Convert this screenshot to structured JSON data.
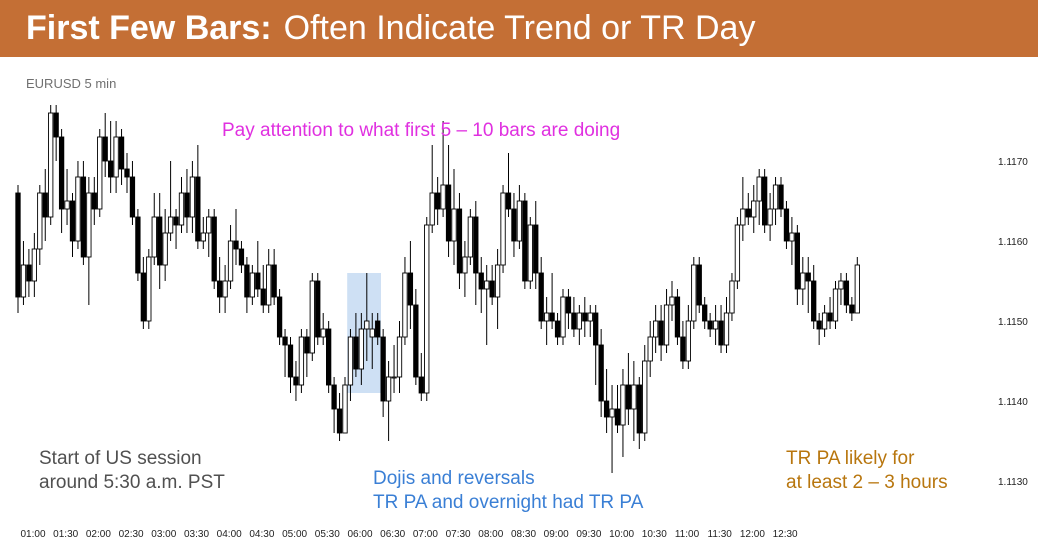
{
  "header": {
    "title_bold": "First Few Bars:",
    "title_rest": "Often Indicate Trend or TR Day",
    "background": "#c46f35"
  },
  "chart_label": "EURUSD 5 min",
  "annotations": {
    "top": "Pay attention to what first 5 – 10 bars are doing",
    "left_line1": "Start of US session",
    "left_line2": "around 5:30 a.m. PST",
    "middle_line1": "Dojis and reversals",
    "middle_line2": "TR PA and overnight had TR PA",
    "right_line1": "TR PA likely for",
    "right_line2": "at least 2 – 3 hours"
  },
  "chart_data": {
    "type": "candlestick",
    "title": "EURUSD 5 min",
    "x_start": "01:00",
    "x_interval_minutes": 5,
    "x_tick_labels": [
      "01:00",
      "01:30",
      "02:00",
      "02:30",
      "03:00",
      "03:30",
      "04:00",
      "04:30",
      "05:00",
      "05:30",
      "06:00",
      "06:30",
      "07:00",
      "07:30",
      "08:00",
      "08:30",
      "09:00",
      "09:30",
      "10:00",
      "10:30",
      "11:00",
      "11:30",
      "12:00",
      "12:30"
    ],
    "y_tick_labels": [
      "1.1130",
      "1.1140",
      "1.1150",
      "1.1160",
      "1.1170"
    ],
    "y_ticks": [
      1.113,
      1.114,
      1.115,
      1.116,
      1.117
    ],
    "ylim": [
      1.1125,
      1.1178
    ],
    "bar_up_color": "#ffffff",
    "bar_down_color": "#000000",
    "highlight": {
      "from_bar": 61,
      "to_bar": 66,
      "low": 1.1141,
      "high": 1.1156,
      "color": "#c6daf2"
    },
    "bars": [
      {
        "o": 1.1166,
        "h": 1.1167,
        "l": 1.1151,
        "c": 1.1153
      },
      {
        "o": 1.1153,
        "h": 1.116,
        "l": 1.1152,
        "c": 1.1157
      },
      {
        "o": 1.1157,
        "h": 1.1159,
        "l": 1.1153,
        "c": 1.1155
      },
      {
        "o": 1.1155,
        "h": 1.1161,
        "l": 1.1153,
        "c": 1.1159
      },
      {
        "o": 1.1159,
        "h": 1.1167,
        "l": 1.1157,
        "c": 1.1166
      },
      {
        "o": 1.1166,
        "h": 1.1169,
        "l": 1.116,
        "c": 1.1163
      },
      {
        "o": 1.1163,
        "h": 1.1177,
        "l": 1.1162,
        "c": 1.1176
      },
      {
        "o": 1.1176,
        "h": 1.1177,
        "l": 1.117,
        "c": 1.1173
      },
      {
        "o": 1.1173,
        "h": 1.1174,
        "l": 1.1161,
        "c": 1.1164
      },
      {
        "o": 1.1164,
        "h": 1.1169,
        "l": 1.1162,
        "c": 1.1165
      },
      {
        "o": 1.1165,
        "h": 1.1166,
        "l": 1.1158,
        "c": 1.116
      },
      {
        "o": 1.116,
        "h": 1.117,
        "l": 1.1159,
        "c": 1.1168
      },
      {
        "o": 1.1168,
        "h": 1.117,
        "l": 1.1157,
        "c": 1.1158
      },
      {
        "o": 1.1158,
        "h": 1.1168,
        "l": 1.1152,
        "c": 1.1166
      },
      {
        "o": 1.1166,
        "h": 1.1168,
        "l": 1.1162,
        "c": 1.1164
      },
      {
        "o": 1.1164,
        "h": 1.1174,
        "l": 1.1163,
        "c": 1.1173
      },
      {
        "o": 1.1173,
        "h": 1.1176,
        "l": 1.1168,
        "c": 1.117
      },
      {
        "o": 1.117,
        "h": 1.1175,
        "l": 1.1166,
        "c": 1.1168
      },
      {
        "o": 1.1168,
        "h": 1.1175,
        "l": 1.1166,
        "c": 1.1173
      },
      {
        "o": 1.1173,
        "h": 1.1174,
        "l": 1.1167,
        "c": 1.1169
      },
      {
        "o": 1.1169,
        "h": 1.1171,
        "l": 1.1166,
        "c": 1.1168
      },
      {
        "o": 1.1168,
        "h": 1.117,
        "l": 1.1162,
        "c": 1.1163
      },
      {
        "o": 1.1163,
        "h": 1.1164,
        "l": 1.1155,
        "c": 1.1156
      },
      {
        "o": 1.1156,
        "h": 1.1158,
        "l": 1.1149,
        "c": 1.115
      },
      {
        "o": 1.115,
        "h": 1.1159,
        "l": 1.1149,
        "c": 1.1158
      },
      {
        "o": 1.1158,
        "h": 1.1166,
        "l": 1.1157,
        "c": 1.1163
      },
      {
        "o": 1.1163,
        "h": 1.1166,
        "l": 1.1154,
        "c": 1.1157
      },
      {
        "o": 1.1157,
        "h": 1.1164,
        "l": 1.1155,
        "c": 1.1161
      },
      {
        "o": 1.1161,
        "h": 1.117,
        "l": 1.116,
        "c": 1.1163
      },
      {
        "o": 1.1163,
        "h": 1.1164,
        "l": 1.1159,
        "c": 1.1162
      },
      {
        "o": 1.1162,
        "h": 1.1168,
        "l": 1.1161,
        "c": 1.1166
      },
      {
        "o": 1.1166,
        "h": 1.1169,
        "l": 1.1161,
        "c": 1.1163
      },
      {
        "o": 1.1163,
        "h": 1.117,
        "l": 1.1161,
        "c": 1.1168
      },
      {
        "o": 1.1168,
        "h": 1.1172,
        "l": 1.1159,
        "c": 1.116
      },
      {
        "o": 1.116,
        "h": 1.1163,
        "l": 1.1159,
        "c": 1.1161
      },
      {
        "o": 1.1161,
        "h": 1.1164,
        "l": 1.1158,
        "c": 1.1163
      },
      {
        "o": 1.1163,
        "h": 1.1164,
        "l": 1.1154,
        "c": 1.1155
      },
      {
        "o": 1.1155,
        "h": 1.1158,
        "l": 1.1151,
        "c": 1.1153
      },
      {
        "o": 1.1153,
        "h": 1.1157,
        "l": 1.1151,
        "c": 1.1155
      },
      {
        "o": 1.1155,
        "h": 1.1162,
        "l": 1.1154,
        "c": 1.116
      },
      {
        "o": 1.116,
        "h": 1.1164,
        "l": 1.1157,
        "c": 1.1159
      },
      {
        "o": 1.1159,
        "h": 1.116,
        "l": 1.1156,
        "c": 1.1157
      },
      {
        "o": 1.1157,
        "h": 1.1158,
        "l": 1.1151,
        "c": 1.1153
      },
      {
        "o": 1.1153,
        "h": 1.1157,
        "l": 1.1152,
        "c": 1.1156
      },
      {
        "o": 1.1156,
        "h": 1.116,
        "l": 1.1153,
        "c": 1.1154
      },
      {
        "o": 1.1154,
        "h": 1.1157,
        "l": 1.1151,
        "c": 1.1152
      },
      {
        "o": 1.1152,
        "h": 1.1159,
        "l": 1.1151,
        "c": 1.1157
      },
      {
        "o": 1.1157,
        "h": 1.1159,
        "l": 1.1152,
        "c": 1.1153
      },
      {
        "o": 1.1153,
        "h": 1.1154,
        "l": 1.1147,
        "c": 1.1148
      },
      {
        "o": 1.1148,
        "h": 1.1149,
        "l": 1.1143,
        "c": 1.1147
      },
      {
        "o": 1.1147,
        "h": 1.1148,
        "l": 1.1141,
        "c": 1.1143
      },
      {
        "o": 1.1143,
        "h": 1.1145,
        "l": 1.114,
        "c": 1.1142
      },
      {
        "o": 1.1142,
        "h": 1.1149,
        "l": 1.1141,
        "c": 1.1148
      },
      {
        "o": 1.1148,
        "h": 1.1149,
        "l": 1.1143,
        "c": 1.1146
      },
      {
        "o": 1.1146,
        "h": 1.1156,
        "l": 1.1145,
        "c": 1.1155
      },
      {
        "o": 1.1155,
        "h": 1.1156,
        "l": 1.1147,
        "c": 1.1148
      },
      {
        "o": 1.1148,
        "h": 1.1151,
        "l": 1.1147,
        "c": 1.1149
      },
      {
        "o": 1.1149,
        "h": 1.115,
        "l": 1.1141,
        "c": 1.1142
      },
      {
        "o": 1.1142,
        "h": 1.1143,
        "l": 1.1136,
        "c": 1.1139
      },
      {
        "o": 1.1139,
        "h": 1.1141,
        "l": 1.1135,
        "c": 1.1136
      },
      {
        "o": 1.1136,
        "h": 1.1143,
        "l": 1.1136,
        "c": 1.1142
      },
      {
        "o": 1.1142,
        "h": 1.1149,
        "l": 1.114,
        "c": 1.1148
      },
      {
        "o": 1.1148,
        "h": 1.1151,
        "l": 1.1143,
        "c": 1.1144
      },
      {
        "o": 1.1144,
        "h": 1.1151,
        "l": 1.1142,
        "c": 1.1149
      },
      {
        "o": 1.1149,
        "h": 1.1156,
        "l": 1.1145,
        "c": 1.115
      },
      {
        "o": 1.1148,
        "h": 1.1151,
        "l": 1.1144,
        "c": 1.1149
      },
      {
        "o": 1.115,
        "h": 1.1151,
        "l": 1.1147,
        "c": 1.1148
      },
      {
        "o": 1.1148,
        "h": 1.1149,
        "l": 1.1138,
        "c": 1.114
      },
      {
        "o": 1.114,
        "h": 1.1145,
        "l": 1.1135,
        "c": 1.1143
      },
      {
        "o": 1.1143,
        "h": 1.1147,
        "l": 1.1141,
        "c": 1.1143
      },
      {
        "o": 1.1143,
        "h": 1.115,
        "l": 1.1141,
        "c": 1.1148
      },
      {
        "o": 1.1148,
        "h": 1.1158,
        "l": 1.1147,
        "c": 1.1156
      },
      {
        "o": 1.1156,
        "h": 1.116,
        "l": 1.1149,
        "c": 1.1152
      },
      {
        "o": 1.1152,
        "h": 1.1154,
        "l": 1.1142,
        "c": 1.1143
      },
      {
        "o": 1.1143,
        "h": 1.1146,
        "l": 1.114,
        "c": 1.1141
      },
      {
        "o": 1.1141,
        "h": 1.1163,
        "l": 1.114,
        "c": 1.1162
      },
      {
        "o": 1.1162,
        "h": 1.1172,
        "l": 1.1161,
        "c": 1.1166
      },
      {
        "o": 1.1166,
        "h": 1.1168,
        "l": 1.1162,
        "c": 1.1164
      },
      {
        "o": 1.1164,
        "h": 1.1175,
        "l": 1.1163,
        "c": 1.1167
      },
      {
        "o": 1.1167,
        "h": 1.1172,
        "l": 1.1158,
        "c": 1.116
      },
      {
        "o": 1.116,
        "h": 1.1169,
        "l": 1.1157,
        "c": 1.1164
      },
      {
        "o": 1.1164,
        "h": 1.1166,
        "l": 1.1154,
        "c": 1.1156
      },
      {
        "o": 1.1156,
        "h": 1.116,
        "l": 1.1153,
        "c": 1.1158
      },
      {
        "o": 1.1158,
        "h": 1.1164,
        "l": 1.1157,
        "c": 1.1163
      },
      {
        "o": 1.1163,
        "h": 1.1165,
        "l": 1.1152,
        "c": 1.1156
      },
      {
        "o": 1.1156,
        "h": 1.1158,
        "l": 1.1151,
        "c": 1.1154
      },
      {
        "o": 1.1154,
        "h": 1.1157,
        "l": 1.1147,
        "c": 1.1155
      },
      {
        "o": 1.1155,
        "h": 1.1157,
        "l": 1.1152,
        "c": 1.1153
      },
      {
        "o": 1.1153,
        "h": 1.1159,
        "l": 1.1149,
        "c": 1.1157
      },
      {
        "o": 1.1157,
        "h": 1.1167,
        "l": 1.1156,
        "c": 1.1166
      },
      {
        "o": 1.1166,
        "h": 1.1171,
        "l": 1.1163,
        "c": 1.1164
      },
      {
        "o": 1.1164,
        "h": 1.1166,
        "l": 1.1158,
        "c": 1.116
      },
      {
        "o": 1.116,
        "h": 1.1167,
        "l": 1.1159,
        "c": 1.1165
      },
      {
        "o": 1.1165,
        "h": 1.1166,
        "l": 1.1154,
        "c": 1.1155
      },
      {
        "o": 1.1155,
        "h": 1.1163,
        "l": 1.1154,
        "c": 1.1162
      },
      {
        "o": 1.1162,
        "h": 1.1165,
        "l": 1.1154,
        "c": 1.1156
      },
      {
        "o": 1.1156,
        "h": 1.1158,
        "l": 1.1149,
        "c": 1.115
      },
      {
        "o": 1.115,
        "h": 1.1153,
        "l": 1.1147,
        "c": 1.1151
      },
      {
        "o": 1.1151,
        "h": 1.1156,
        "l": 1.1149,
        "c": 1.115
      },
      {
        "o": 1.115,
        "h": 1.1151,
        "l": 1.1147,
        "c": 1.1148
      },
      {
        "o": 1.1148,
        "h": 1.1154,
        "l": 1.1147,
        "c": 1.1153
      },
      {
        "o": 1.1153,
        "h": 1.1154,
        "l": 1.1149,
        "c": 1.1151
      },
      {
        "o": 1.1151,
        "h": 1.1153,
        "l": 1.1148,
        "c": 1.1149
      },
      {
        "o": 1.1149,
        "h": 1.1152,
        "l": 1.1147,
        "c": 1.1151
      },
      {
        "o": 1.1151,
        "h": 1.1153,
        "l": 1.1148,
        "c": 1.115
      },
      {
        "o": 1.115,
        "h": 1.1152,
        "l": 1.1148,
        "c": 1.1151
      },
      {
        "o": 1.1151,
        "h": 1.1152,
        "l": 1.1142,
        "c": 1.1147
      },
      {
        "o": 1.1147,
        "h": 1.1149,
        "l": 1.1138,
        "c": 1.114
      },
      {
        "o": 1.114,
        "h": 1.1144,
        "l": 1.1136,
        "c": 1.1138
      },
      {
        "o": 1.1138,
        "h": 1.1142,
        "l": 1.1131,
        "c": 1.1139
      },
      {
        "o": 1.1139,
        "h": 1.1142,
        "l": 1.1136,
        "c": 1.1137
      },
      {
        "o": 1.1137,
        "h": 1.1144,
        "l": 1.1133,
        "c": 1.1142
      },
      {
        "o": 1.1142,
        "h": 1.1146,
        "l": 1.1137,
        "c": 1.1139
      },
      {
        "o": 1.1139,
        "h": 1.1145,
        "l": 1.1135,
        "c": 1.1142
      },
      {
        "o": 1.1142,
        "h": 1.1143,
        "l": 1.1134,
        "c": 1.1136
      },
      {
        "o": 1.1136,
        "h": 1.1147,
        "l": 1.1135,
        "c": 1.1145
      },
      {
        "o": 1.1145,
        "h": 1.115,
        "l": 1.1143,
        "c": 1.1148
      },
      {
        "o": 1.1148,
        "h": 1.1152,
        "l": 1.1146,
        "c": 1.115
      },
      {
        "o": 1.115,
        "h": 1.1152,
        "l": 1.1145,
        "c": 1.1147
      },
      {
        "o": 1.1147,
        "h": 1.1154,
        "l": 1.1146,
        "c": 1.1152
      },
      {
        "o": 1.1152,
        "h": 1.1155,
        "l": 1.115,
        "c": 1.1153
      },
      {
        "o": 1.1153,
        "h": 1.1154,
        "l": 1.1147,
        "c": 1.1148
      },
      {
        "o": 1.1148,
        "h": 1.115,
        "l": 1.1144,
        "c": 1.1145
      },
      {
        "o": 1.1145,
        "h": 1.1152,
        "l": 1.1144,
        "c": 1.115
      },
      {
        "o": 1.115,
        "h": 1.1158,
        "l": 1.1149,
        "c": 1.1157
      },
      {
        "o": 1.1157,
        "h": 1.1158,
        "l": 1.1151,
        "c": 1.1152
      },
      {
        "o": 1.1152,
        "h": 1.1153,
        "l": 1.1149,
        "c": 1.115
      },
      {
        "o": 1.115,
        "h": 1.1151,
        "l": 1.1148,
        "c": 1.1149
      },
      {
        "o": 1.1149,
        "h": 1.1152,
        "l": 1.1147,
        "c": 1.115
      },
      {
        "o": 1.115,
        "h": 1.1152,
        "l": 1.1146,
        "c": 1.1147
      },
      {
        "o": 1.1147,
        "h": 1.1153,
        "l": 1.1146,
        "c": 1.1151
      },
      {
        "o": 1.1151,
        "h": 1.1156,
        "l": 1.115,
        "c": 1.1155
      },
      {
        "o": 1.1155,
        "h": 1.1163,
        "l": 1.1154,
        "c": 1.1162
      },
      {
        "o": 1.1162,
        "h": 1.1168,
        "l": 1.116,
        "c": 1.1164
      },
      {
        "o": 1.1164,
        "h": 1.1166,
        "l": 1.1162,
        "c": 1.1163
      },
      {
        "o": 1.1163,
        "h": 1.1167,
        "l": 1.1161,
        "c": 1.1165
      },
      {
        "o": 1.1165,
        "h": 1.1169,
        "l": 1.1162,
        "c": 1.1168
      },
      {
        "o": 1.1168,
        "h": 1.1169,
        "l": 1.1161,
        "c": 1.1162
      },
      {
        "o": 1.1162,
        "h": 1.1166,
        "l": 1.116,
        "c": 1.1164
      },
      {
        "o": 1.1164,
        "h": 1.1168,
        "l": 1.1162,
        "c": 1.1167
      },
      {
        "o": 1.1167,
        "h": 1.1168,
        "l": 1.1163,
        "c": 1.1164
      },
      {
        "o": 1.1164,
        "h": 1.1165,
        "l": 1.1159,
        "c": 1.116
      },
      {
        "o": 1.116,
        "h": 1.1163,
        "l": 1.1157,
        "c": 1.1161
      },
      {
        "o": 1.1161,
        "h": 1.1162,
        "l": 1.1152,
        "c": 1.1154
      },
      {
        "o": 1.1154,
        "h": 1.1158,
        "l": 1.1152,
        "c": 1.1156
      },
      {
        "o": 1.1156,
        "h": 1.1158,
        "l": 1.1151,
        "c": 1.1155
      },
      {
        "o": 1.1155,
        "h": 1.1157,
        "l": 1.1149,
        "c": 1.115
      },
      {
        "o": 1.115,
        "h": 1.1151,
        "l": 1.1147,
        "c": 1.1149
      },
      {
        "o": 1.1149,
        "h": 1.1152,
        "l": 1.1148,
        "c": 1.1151
      },
      {
        "o": 1.1151,
        "h": 1.1153,
        "l": 1.1149,
        "c": 1.115
      },
      {
        "o": 1.115,
        "h": 1.1155,
        "l": 1.1149,
        "c": 1.1154
      },
      {
        "o": 1.1154,
        "h": 1.1156,
        "l": 1.1152,
        "c": 1.1155
      },
      {
        "o": 1.1155,
        "h": 1.1156,
        "l": 1.1151,
        "c": 1.1152
      },
      {
        "o": 1.1152,
        "h": 1.1153,
        "l": 1.115,
        "c": 1.1151
      },
      {
        "o": 1.1151,
        "h": 1.1158,
        "l": 1.1151,
        "c": 1.1157
      }
    ]
  }
}
